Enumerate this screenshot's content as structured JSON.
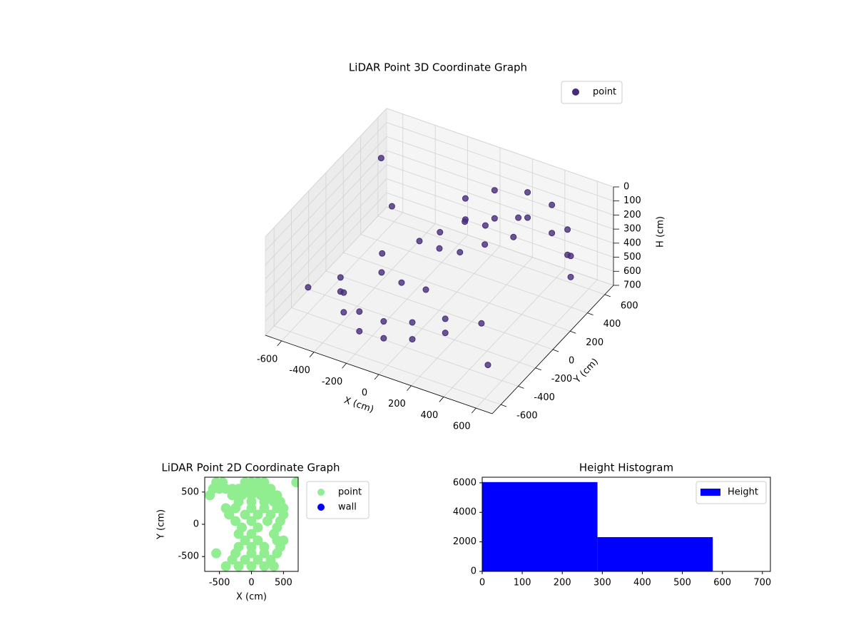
{
  "chart_data": [
    {
      "type": "scatter3d",
      "title": "LiDAR Point 3D Coordinate Graph",
      "xlabel": "X (cm)",
      "ylabel": "Y (cm)",
      "zlabel": "H (cm)",
      "xlim": [
        -700,
        700
      ],
      "ylim": [
        -700,
        700
      ],
      "zlim": [
        700,
        0
      ],
      "xticks": [
        -600,
        -400,
        -200,
        0,
        200,
        400,
        600
      ],
      "yticks": [
        -600,
        -400,
        -200,
        0,
        200,
        400,
        600
      ],
      "zticks": [
        0,
        100,
        200,
        300,
        400,
        500,
        600,
        700
      ],
      "grid": true,
      "legend": "upper right",
      "series": [
        {
          "name": "point",
          "color": "#472c7a",
          "x": [
            0,
            0,
            100,
            100,
            250,
            250,
            400,
            400,
            550,
            550,
            650,
            650,
            50,
            150,
            -50,
            200,
            100,
            0,
            300,
            350,
            -450,
            -450,
            -350,
            -350,
            -200,
            -200,
            -50,
            -50,
            100,
            100,
            250,
            250,
            -250,
            -100,
            50,
            -300,
            -150,
            -400,
            -600,
            -650,
            620,
            500
          ],
          "y": [
            300,
            300,
            450,
            450,
            550,
            550,
            550,
            550,
            450,
            450,
            300,
            300,
            200,
            250,
            100,
            150,
            50,
            0,
            350,
            200,
            -300,
            -300,
            -450,
            -450,
            -550,
            -550,
            -550,
            -550,
            -500,
            -500,
            -400,
            -400,
            -200,
            -250,
            -250,
            -100,
            50,
            200,
            450,
            -300,
            -600,
            -450
          ],
          "z": [
            100,
            250,
            100,
            300,
            120,
            300,
            150,
            350,
            200,
            380,
            250,
            400,
            180,
            200,
            230,
            250,
            280,
            260,
            150,
            170,
            450,
            550,
            420,
            560,
            430,
            570,
            440,
            560,
            420,
            540,
            400,
            500,
            400,
            380,
            370,
            350,
            300,
            250,
            150,
            600,
            450,
            300
          ]
        }
      ]
    },
    {
      "type": "scatter",
      "title": "LiDAR Point 2D Coordinate Graph",
      "xlabel": "X (cm)",
      "ylabel": "Y (cm)",
      "xlim": [
        -730,
        730
      ],
      "ylim": [
        -730,
        730
      ],
      "xticks": [
        -500,
        0,
        500
      ],
      "yticks": [
        -500,
        0,
        500
      ],
      "legend": "outside upper right",
      "series": [
        {
          "name": "point",
          "color": "#90ee90",
          "x": [
            -550,
            -450,
            -100,
            0,
            100,
            200,
            700,
            -600,
            -500,
            -400,
            -300,
            -200,
            -100,
            0,
            100,
            200,
            300,
            -650,
            -300,
            -150,
            0,
            150,
            300,
            400,
            -200,
            0,
            200,
            350,
            450,
            -400,
            -250,
            0,
            200,
            400,
            500,
            -350,
            -100,
            100,
            300,
            500,
            -250,
            0,
            250,
            450,
            -150,
            100,
            400,
            -200,
            0,
            350,
            -100,
            100,
            400,
            500,
            -200,
            0,
            200,
            450,
            -550,
            -250,
            0,
            200,
            400,
            -300,
            -100,
            100,
            300,
            -400,
            -200,
            0,
            200,
            350
          ],
          "y": [
            650,
            650,
            650,
            650,
            650,
            650,
            650,
            550,
            550,
            550,
            550,
            550,
            550,
            550,
            550,
            550,
            550,
            450,
            450,
            450,
            450,
            450,
            450,
            450,
            350,
            350,
            350,
            350,
            350,
            250,
            250,
            250,
            250,
            250,
            250,
            150,
            150,
            150,
            150,
            150,
            50,
            50,
            50,
            50,
            -50,
            -50,
            -50,
            -150,
            -150,
            -150,
            -250,
            -250,
            -250,
            -250,
            -350,
            -350,
            -350,
            -350,
            -450,
            -450,
            -450,
            -450,
            -450,
            -550,
            -550,
            -550,
            -550,
            -650,
            -650,
            -650,
            -650,
            -650
          ]
        },
        {
          "name": "wall",
          "color": "#0000ff",
          "x": [],
          "y": []
        }
      ]
    },
    {
      "type": "histogram",
      "title": "Height Histogram",
      "bins": [
        0,
        288,
        576,
        720
      ],
      "values": [
        6050,
        2320,
        0
      ],
      "xlim": [
        0,
        720
      ],
      "ylim": [
        0,
        6380
      ],
      "xticks": [
        0,
        100,
        200,
        300,
        400,
        500,
        600,
        700
      ],
      "yticks": [
        0,
        2000,
        4000,
        6000
      ],
      "legend": "upper right",
      "series": [
        {
          "name": "Height",
          "color": "#0000ff"
        }
      ]
    }
  ]
}
